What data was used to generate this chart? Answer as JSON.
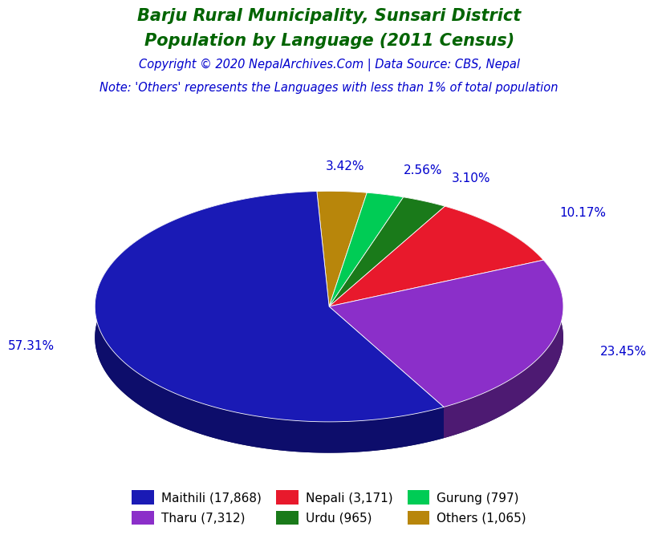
{
  "title_line1": "Barju Rural Municipality, Sunsari District",
  "title_line2": "Population by Language (2011 Census)",
  "copyright": "Copyright © 2020 NepalArchives.Com | Data Source: CBS, Nepal",
  "note": "Note: 'Others' represents the Languages with less than 1% of total population",
  "labels": [
    "Maithili",
    "Tharu",
    "Nepali",
    "Urdu",
    "Gurung",
    "Others"
  ],
  "values": [
    17868,
    7312,
    3171,
    965,
    797,
    1065
  ],
  "percentages": [
    "57.31%",
    "23.45%",
    "10.17%",
    "3.10%",
    "2.56%",
    "3.42%"
  ],
  "colors": [
    "#1a1ab5",
    "#8b2fc9",
    "#e8192c",
    "#1a7a1a",
    "#00cc55",
    "#b8860b"
  ],
  "shadow_colors": [
    "#0d0d6b",
    "#4d1a72",
    "#880010",
    "#0f4f0f",
    "#007733",
    "#7a5a08"
  ],
  "legend_labels": [
    "Maithili (17,868)",
    "Tharu (7,312)",
    "Nepali (3,171)",
    "Urdu (965)",
    "Gurung (797)",
    "Others (1,065)"
  ],
  "legend_colors": [
    "#1a1ab5",
    "#8b2fc9",
    "#e8192c",
    "#1a7a1a",
    "#00cc55",
    "#b8860b"
  ],
  "title_color": "#006400",
  "copyright_color": "#0000cd",
  "note_color": "#0000cd",
  "pct_color": "#0000cd",
  "background_color": "#ffffff"
}
